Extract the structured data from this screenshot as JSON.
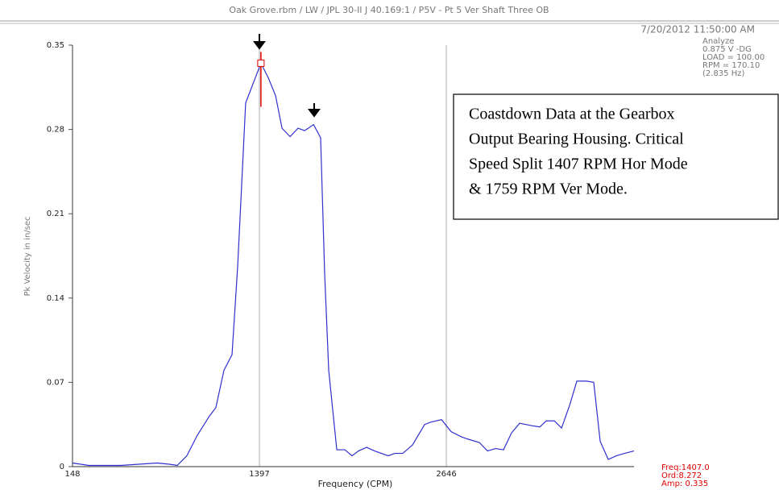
{
  "chart_data": {
    "type": "line",
    "title": "Oak Grove.rbm / LW / JPL 30-II J 40.169:1 / P5V - Pt 5 Ver Shaft Three OB",
    "timestamp": "7/20/2012 11:50:00 AM",
    "info": [
      "Analyze",
      "0.875 V -DG",
      "LOAD = 100.00",
      "RPM = 170.10",
      "(2.835 Hz)"
    ],
    "annotation": [
      "Coastdown Data at the Gearbox",
      "Output Bearing Housing. Critical",
      "Speed Split 1407 RPM Hor Mode",
      "& 1759 RPM Ver Mode."
    ],
    "cursor_readout": [
      "Freq:1407.0",
      "Ord:8.272",
      "Amp: 0.335"
    ],
    "x_label": "Frequency (CPM)",
    "y_label": "Pk Velocity in in/sec",
    "x": [
      148,
      256,
      471,
      713,
      794,
      848,
      912,
      982,
      1063,
      1106,
      1160,
      1214,
      1252,
      1305,
      1407,
      1456,
      1505,
      1548,
      1602,
      1655,
      1699,
      1759,
      1806,
      1833,
      1860,
      1914,
      1968,
      2016,
      2059,
      2113,
      2167,
      2258,
      2301,
      2355,
      2420,
      2501,
      2544,
      2614,
      2678,
      2743,
      2786,
      2867,
      2921,
      2974,
      3028,
      3082,
      3136,
      3217,
      3271,
      3314,
      3368,
      3416,
      3470,
      3518,
      3583,
      3631,
      3674,
      3728,
      3782,
      3836,
      3900
    ],
    "series": [
      {
        "name": "Spectrum",
        "color": "#3030d0",
        "values": [
          0.003,
          0.001,
          0.001,
          0.003,
          0.002,
          0.001,
          0.009,
          0.026,
          0.042,
          0.049,
          0.08,
          0.093,
          0.167,
          0.302,
          0.335,
          0.323,
          0.308,
          0.281,
          0.274,
          0.281,
          0.279,
          0.284,
          0.273,
          0.16,
          0.08,
          0.014,
          0.014,
          0.009,
          0.013,
          0.016,
          0.013,
          0.009,
          0.011,
          0.011,
          0.018,
          0.035,
          0.037,
          0.039,
          0.029,
          0.025,
          0.023,
          0.02,
          0.013,
          0.015,
          0.014,
          0.028,
          0.036,
          0.034,
          0.033,
          0.038,
          0.038,
          0.032,
          0.051,
          0.071,
          0.071,
          0.07,
          0.021,
          0.006,
          0.009,
          0.011,
          0.013
        ]
      }
    ],
    "cursor_index": 14,
    "cursor_color": "#e00000",
    "xlim": [
      148,
      3900
    ],
    "xticks": [
      148,
      1397,
      2646
    ],
    "ylim": [
      0,
      0.35
    ],
    "yticks": [
      0,
      0.07,
      0.14,
      0.21,
      0.28,
      0.35
    ],
    "grid_x": true
  }
}
